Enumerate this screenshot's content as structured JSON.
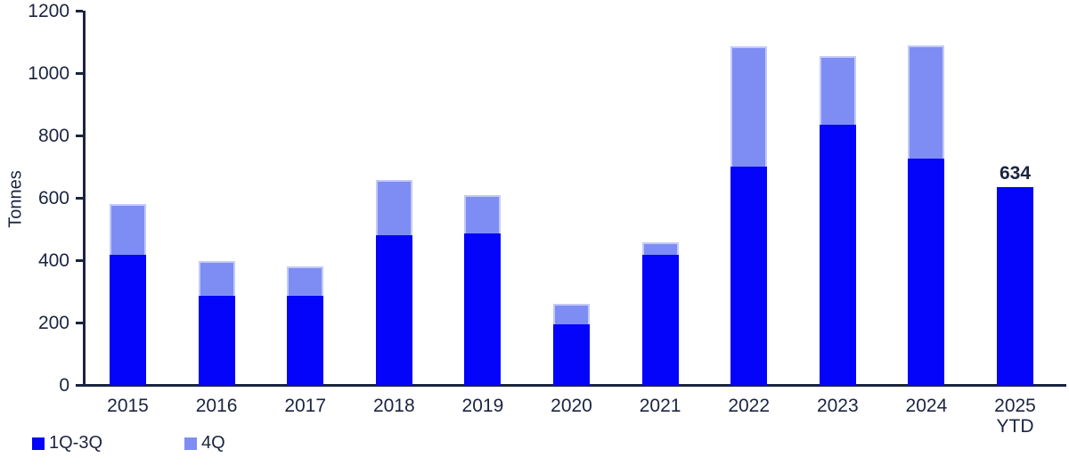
{
  "chart_data": {
    "type": "bar",
    "stacked": true,
    "title": "",
    "xlabel": "",
    "ylabel": "Tonnes",
    "ylim": [
      0,
      1200
    ],
    "ytick_step": 200,
    "grid": false,
    "legend_position": "bottom-left",
    "categories": [
      "2015",
      "2016",
      "2017",
      "2018",
      "2019",
      "2020",
      "2021",
      "2022",
      "2023",
      "2024",
      "2025\nYTD"
    ],
    "series": [
      {
        "name": "1Q-3Q",
        "color": "#0404fa",
        "values": [
          417,
          286,
          287,
          481,
          487,
          194,
          417,
          699,
          835,
          726,
          634
        ]
      },
      {
        "name": "4Q",
        "color": "#7e8df4",
        "values": [
          163,
          111,
          94,
          177,
          122,
          65,
          40,
          385,
          220,
          364,
          0
        ]
      }
    ],
    "annotations": [
      {
        "category_index": 10,
        "text": "634"
      }
    ]
  },
  "colors": {
    "axis": "#1b2440",
    "text": "#1b2440",
    "q13_fill": "#0404fa",
    "q4_fill": "#7e8df4",
    "q4_border": "#c3c9f8"
  }
}
